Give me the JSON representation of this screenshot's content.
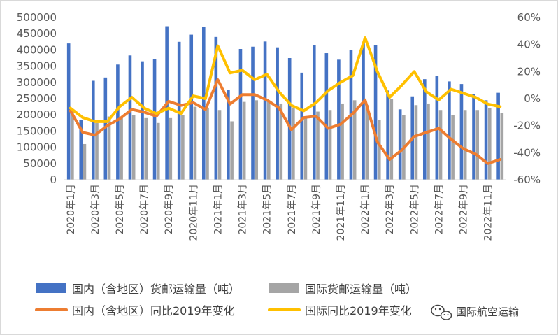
{
  "chart_data": {
    "type": "bar",
    "categories": [
      "2020年1月",
      "2020年2月",
      "2020年3月",
      "2020年4月",
      "2020年5月",
      "2020年6月",
      "2020年7月",
      "2020年8月",
      "2020年9月",
      "2020年10月",
      "2020年11月",
      "2020年12月",
      "2021年1月",
      "2021年2月",
      "2021年3月",
      "2021年4月",
      "2021年5月",
      "2021年6月",
      "2021年7月",
      "2021年8月",
      "2021年9月",
      "2021年10月",
      "2021年11月",
      "2021年12月",
      "2022年1月",
      "2022年2月",
      "2022年3月",
      "2022年4月",
      "2022年5月",
      "2022年6月",
      "2022年7月",
      "2022年8月",
      "2022年9月",
      "2022年10月",
      "2022年11月",
      "2022年12月"
    ],
    "x_tick_labels": [
      "2020年1月",
      "2020年3月",
      "2020年5月",
      "2020年7月",
      "2020年9月",
      "2020年11月",
      "2021年1月",
      "2021年3月",
      "2021年5月",
      "2021年7月",
      "2021年9月",
      "2021年11月",
      "2022年1月",
      "2022年3月",
      "2022年5月",
      "2022年7月",
      "2022年9月",
      "2022年11月"
    ],
    "series": [
      {
        "name": "国内（含地区）货邮运输量（吨）",
        "type": "bar",
        "axis": "left",
        "color": "#4472C4",
        "values": [
          420000,
          185000,
          305000,
          315000,
          355000,
          383000,
          365000,
          372000,
          473000,
          425000,
          447000,
          472000,
          440000,
          278000,
          403000,
          410000,
          426000,
          408000,
          375000,
          330000,
          414000,
          390000,
          370000,
          400000,
          423000,
          415000,
          275000,
          217000,
          257000,
          310000,
          320000,
          303000,
          295000,
          265000,
          245000,
          268000
        ]
      },
      {
        "name": "国际货邮运输量（吨）",
        "type": "bar",
        "axis": "left",
        "color": "#A5A5A5",
        "values": [
          210000,
          110000,
          175000,
          195000,
          195000,
          200000,
          190000,
          175000,
          190000,
          200000,
          225000,
          220000,
          215000,
          180000,
          240000,
          245000,
          240000,
          235000,
          220000,
          190000,
          210000,
          215000,
          235000,
          245000,
          230000,
          185000,
          250000,
          200000,
          230000,
          235000,
          215000,
          200000,
          215000,
          215000,
          220000,
          205000
        ]
      },
      {
        "name": "国内（含地区）同比2019年变化",
        "type": "line",
        "axis": "right",
        "color": "#ED7D31",
        "values": [
          -9,
          -25,
          -27,
          -20,
          -15,
          -8,
          -10,
          -13,
          -2,
          -5,
          -3,
          -8,
          14,
          -4,
          3,
          3,
          -1,
          -7,
          -23,
          -14,
          -13,
          -22,
          -19,
          -11,
          -1,
          -32,
          -45,
          -38,
          -28,
          -25,
          -22,
          -30,
          -37,
          -41,
          -48,
          -45
        ]
      },
      {
        "name": "国际同比2019年变化",
        "type": "line",
        "axis": "right",
        "color": "#FFC000",
        "values": [
          -7,
          -14,
          -17,
          -17,
          -6,
          1,
          -7,
          -11,
          -7,
          -11,
          2,
          0,
          39,
          19,
          21,
          14,
          18,
          5,
          -5,
          -9,
          -3,
          6,
          12,
          17,
          45,
          20,
          1,
          10,
          20,
          5,
          -1,
          7,
          4,
          1,
          -4,
          -6
        ]
      }
    ],
    "y_left": {
      "min": 0,
      "max": 500000,
      "step": 50000,
      "ticks": [
        "0",
        "50000",
        "100000",
        "150000",
        "200000",
        "250000",
        "300000",
        "350000",
        "400000",
        "450000",
        "500000"
      ]
    },
    "y_right": {
      "min": -60,
      "max": 60,
      "step": 20,
      "ticks": [
        "-60%",
        "-40%",
        "-20%",
        "0%",
        "20%",
        "40%",
        "60%"
      ]
    },
    "title": "",
    "xlabel": "",
    "ylabel": "",
    "grid": false,
    "legend_position": "bottom"
  },
  "legend": [
    {
      "label": "国内（含地区）货邮运输量（吨）",
      "kind": "bar",
      "color": "#4472C4"
    },
    {
      "label": "国际货邮运输量（吨）",
      "kind": "bar",
      "color": "#A5A5A5"
    },
    {
      "label": "国内（含地区）同比2019年变化",
      "kind": "line",
      "color": "#ED7D31"
    },
    {
      "label": "国际同比2019年变化",
      "kind": "line",
      "color": "#FFC000"
    }
  ],
  "watermark": {
    "text": "国际航空运输",
    "icon": "wechat-icon"
  }
}
